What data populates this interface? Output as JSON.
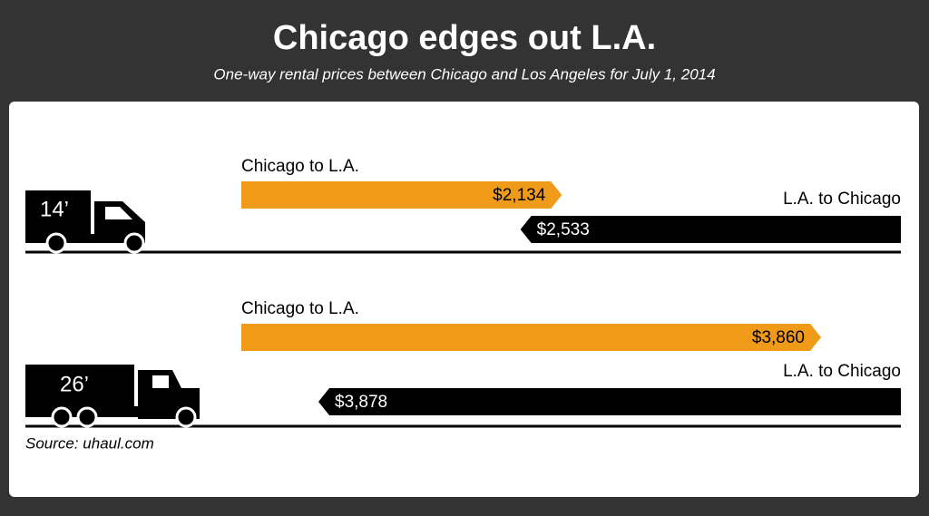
{
  "chart_data": {
    "type": "bar",
    "title": "Chicago edges out L.A.",
    "subtitle": "One-way rental prices between Chicago and Los Angeles for July 1, 2014",
    "source": "Source: uhaul.com",
    "categories": [
      "14’",
      "26’"
    ],
    "series": [
      {
        "name": "Chicago to L.A.",
        "color": "#f09a1a",
        "values": [
          2134,
          3860
        ],
        "value_labels": [
          "$2,134",
          "$3,860"
        ]
      },
      {
        "name": "L.A. to Chicago",
        "color": "#000000",
        "values": [
          2533,
          3878
        ],
        "value_labels": [
          "$2,533",
          "$3,878"
        ]
      }
    ]
  }
}
